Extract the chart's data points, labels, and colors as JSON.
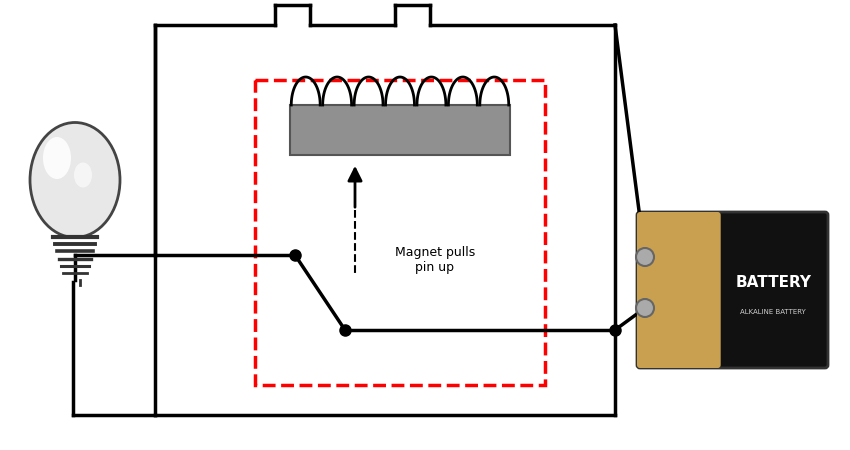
{
  "bg_color": "#ffffff",
  "wire_color": "#000000",
  "lw": 2.5,
  "fig_w": 8.5,
  "fig_h": 4.5,
  "coil_color": "#909090",
  "battery_tan": "#c8a050",
  "battery_black": "#111111",
  "battery_text": "BATTERY",
  "battery_subtext": "ALKALINE BATTERY",
  "annotation_text": "Magnet pulls\npin up"
}
